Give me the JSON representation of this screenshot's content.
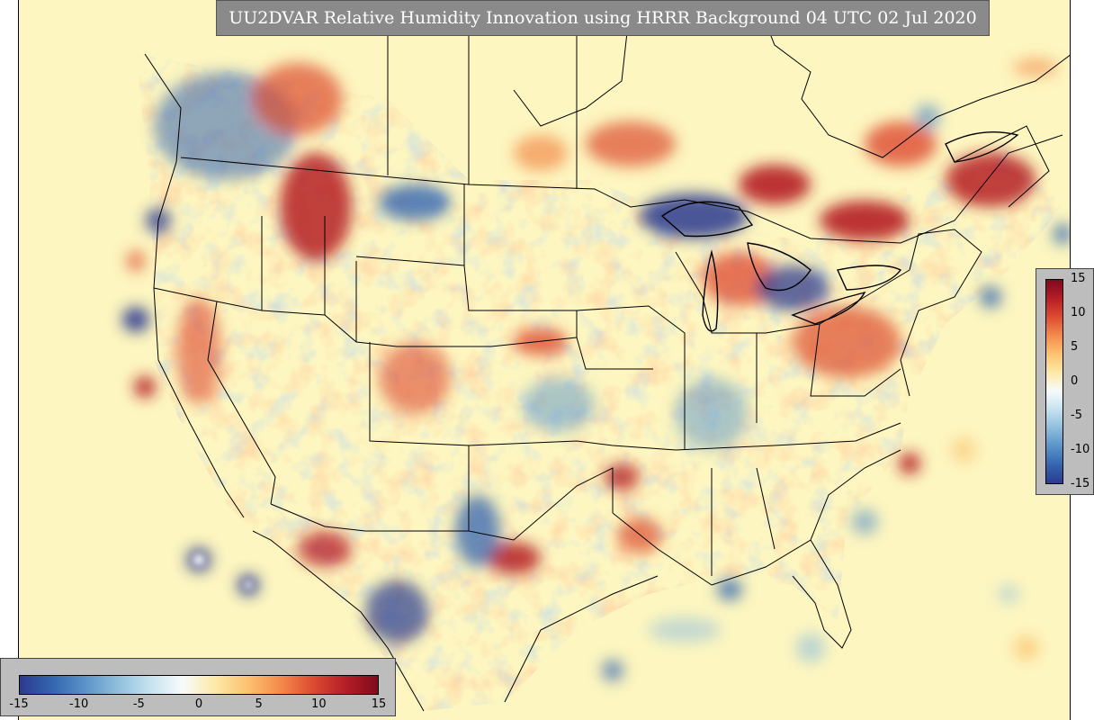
{
  "title": "UU2DVAR Relative Humidity Innovation using HRRR Background 04 UTC 02 Jul 2020",
  "colors": {
    "background": "#fdf6c0",
    "panel": "#bdbdbd",
    "title_bg": "#8a8a8a",
    "scale": [
      "#2b3a8f",
      "#3465b0",
      "#5a93c9",
      "#8fbedd",
      "#c6e2ef",
      "#f7fbfb",
      "#fde9a6",
      "#fcc270",
      "#f48b4c",
      "#dd4b30",
      "#b51e26",
      "#7f0a1e"
    ]
  },
  "colorbar_right": {
    "ticks": [
      "15",
      "10",
      "5",
      "0",
      "-5",
      "-10",
      "-15"
    ]
  },
  "colorbar_bottom": {
    "ticks": [
      "-15",
      "-10",
      "-5",
      "0",
      "5",
      "10",
      "15"
    ]
  }
}
